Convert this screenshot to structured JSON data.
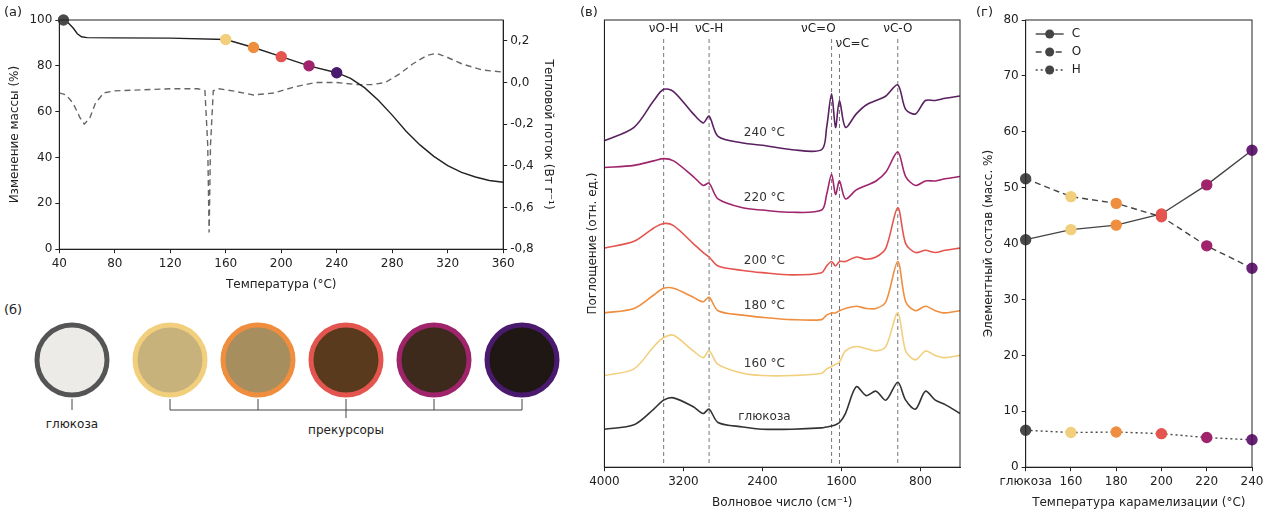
{
  "chart_data": [
    {
      "panel": "(а)",
      "type": "line",
      "x_label": "Температура (°C)",
      "y_label": "Изменение массы (%)",
      "y2_label": "Тепловой поток (Вт г⁻¹)",
      "xlim": [
        40,
        360
      ],
      "xticks": [
        40,
        80,
        120,
        160,
        200,
        240,
        280,
        320,
        360
      ],
      "ylim": [
        0,
        100
      ],
      "yticks": [
        0,
        20,
        40,
        60,
        80,
        100
      ],
      "y2lim": [
        -0.8,
        0.3
      ],
      "y2ticks": [
        {
          "value": 0.2,
          "label": "0,2"
        },
        {
          "value": 0,
          "label": "0,0"
        },
        {
          "value": -0.2,
          "label": "-0,2"
        },
        {
          "value": -0.4,
          "label": "-0,4"
        },
        {
          "value": -0.6,
          "label": "-0,6"
        },
        {
          "value": -0.8,
          "label": "-0,8"
        }
      ],
      "grid": false,
      "series": [
        {
          "type": "line",
          "color": "#222222",
          "line_style": "solid",
          "x": [
            40,
            43,
            46,
            50,
            53,
            56,
            60,
            80,
            120,
            160,
            180,
            200,
            220,
            240,
            250,
            260,
            270,
            280,
            290,
            300,
            310,
            320,
            330,
            340,
            350,
            360
          ],
          "values": [
            100,
            100,
            99,
            96.5,
            94,
            92.7,
            92.3,
            92.2,
            92.1,
            91.5,
            88,
            84,
            80,
            77,
            74.5,
            70.5,
            65,
            58.5,
            51.5,
            45.5,
            40.5,
            36.5,
            33.5,
            31.5,
            30,
            29.2
          ]
        },
        {
          "type": "line",
          "axis": "y2",
          "color": "#666666",
          "line_style": "dashed",
          "x": [
            40,
            45,
            50,
            55,
            58,
            62,
            66,
            72,
            80,
            100,
            120,
            140,
            145,
            147,
            148,
            149,
            151,
            155,
            165,
            180,
            195,
            210,
            225,
            240,
            255,
            265,
            275,
            285,
            295,
            305,
            312,
            320,
            330,
            345,
            360
          ],
          "values": [
            -0.05,
            -0.06,
            -0.1,
            -0.17,
            -0.2,
            -0.17,
            -0.1,
            -0.05,
            -0.04,
            -0.035,
            -0.03,
            -0.03,
            -0.04,
            -0.3,
            -0.72,
            -0.3,
            -0.04,
            -0.03,
            -0.04,
            -0.06,
            -0.05,
            -0.02,
            0,
            0,
            -0.01,
            -0.01,
            0,
            0.04,
            0.09,
            0.13,
            0.14,
            0.12,
            0.09,
            0.06,
            0.05
          ]
        },
        {
          "type": "scatter",
          "marker": "circle",
          "x": [
            43,
            160,
            180,
            200,
            220,
            240
          ],
          "values": [
            100,
            91.5,
            88,
            84,
            80,
            77
          ],
          "colors": [
            "#4a4a4a",
            "#f2cf7c",
            "#ef8e3e",
            "#e4554f",
            "#a0246c",
            "#4a1a6e"
          ]
        }
      ]
    },
    {
      "panel": "(в)",
      "type": "line",
      "x_label": "Волновое число (см⁻¹)",
      "y_label": "Поглощение (отн. ед.)",
      "xlim": [
        4000,
        400
      ],
      "xticks": [
        4000,
        3200,
        2400,
        1600,
        800
      ],
      "ylim": [
        0,
        10
      ],
      "tick_labels": "x",
      "grid": false,
      "annotations": [
        {
          "x": 3400,
          "text": "νO-H"
        },
        {
          "x": 2940,
          "text": "νC-H"
        },
        {
          "x": 1700,
          "text": "νC=O"
        },
        {
          "x": 1620,
          "text": "νC=C"
        },
        {
          "x": 1030,
          "text": "νC-O"
        }
      ],
      "x": [
        4000,
        3700,
        3500,
        3400,
        3300,
        3100,
        3000,
        2940,
        2850,
        2600,
        2400,
        2100,
        1800,
        1750,
        1700,
        1660,
        1620,
        1560,
        1450,
        1350,
        1250,
        1150,
        1030,
        950,
        850,
        750,
        650,
        550,
        400
      ],
      "series": [
        {
          "name": "240 °C",
          "color": "#5a2161",
          "values": [
            7.3,
            7.6,
            8.2,
            8.45,
            8.4,
            7.9,
            7.7,
            7.85,
            7.4,
            7.25,
            7.2,
            7.1,
            7.1,
            7.6,
            8.35,
            7.6,
            8.2,
            7.6,
            7.9,
            8.1,
            8.2,
            8.3,
            8.55,
            8.0,
            7.9,
            8.2,
            8.2,
            8.25,
            8.3
          ]
        },
        {
          "name": "220 °C",
          "color": "#a0246c",
          "values": [
            6.7,
            6.75,
            6.85,
            6.9,
            6.85,
            6.5,
            6.3,
            6.35,
            6.0,
            5.8,
            5.75,
            5.7,
            5.75,
            6.1,
            6.55,
            6.1,
            6.4,
            6.0,
            6.2,
            6.3,
            6.4,
            6.6,
            7.05,
            6.5,
            6.3,
            6.4,
            6.4,
            6.45,
            6.5
          ]
        },
        {
          "name": "200 °C",
          "color": "#e4554f",
          "values": [
            4.9,
            5.05,
            5.35,
            5.45,
            5.4,
            5.0,
            4.8,
            4.7,
            4.5,
            4.4,
            4.35,
            4.3,
            4.35,
            4.5,
            4.6,
            4.5,
            4.6,
            4.6,
            4.7,
            4.65,
            4.7,
            4.9,
            5.8,
            5.0,
            4.8,
            4.85,
            4.8,
            4.85,
            4.9
          ]
        },
        {
          "name": "180 °C",
          "color": "#ef8e3e",
          "values": [
            3.45,
            3.55,
            3.85,
            4.0,
            4.0,
            3.8,
            3.7,
            3.8,
            3.5,
            3.4,
            3.35,
            3.3,
            3.3,
            3.4,
            3.45,
            3.45,
            3.5,
            3.55,
            3.6,
            3.55,
            3.55,
            3.7,
            4.6,
            3.7,
            3.5,
            3.6,
            3.5,
            3.45,
            3.5
          ]
        },
        {
          "name": "160 °C",
          "color": "#f2cf7c",
          "values": [
            2.05,
            2.2,
            2.7,
            2.9,
            2.95,
            2.6,
            2.45,
            2.6,
            2.3,
            2.1,
            2.05,
            2.05,
            2.1,
            2.2,
            2.25,
            2.3,
            2.35,
            2.6,
            2.7,
            2.65,
            2.6,
            2.7,
            3.45,
            2.6,
            2.4,
            2.6,
            2.5,
            2.45,
            2.5
          ]
        },
        {
          "name": "глюкоза",
          "color": "#333333",
          "values": [
            0.85,
            0.95,
            1.3,
            1.5,
            1.55,
            1.35,
            1.2,
            1.3,
            1.0,
            0.9,
            0.85,
            0.85,
            0.88,
            0.9,
            0.92,
            0.95,
            1.0,
            1.2,
            1.8,
            1.6,
            1.7,
            1.5,
            1.9,
            1.5,
            1.3,
            1.7,
            1.5,
            1.4,
            1.2
          ]
        }
      ]
    },
    {
      "panel": "(г)",
      "type": "line",
      "x_label": "Температура карамелизации (°C)",
      "y_label": "Элементный состав (масс. %)",
      "categories": [
        "глюкоза",
        "160",
        "180",
        "200",
        "220",
        "240"
      ],
      "ylim": [
        0,
        80
      ],
      "yticks": [
        0,
        10,
        20,
        30,
        40,
        50,
        60,
        70,
        80
      ],
      "grid": false,
      "legend": "upper left",
      "series": [
        {
          "name": "C",
          "color": "#444444",
          "line_style": "solid",
          "marker": "circle",
          "values": [
            40.7,
            42.5,
            43.3,
            45.3,
            50.5,
            56.7
          ],
          "colors": [
            "#4a4a4a",
            "#f2cf7c",
            "#ef8e3e",
            "#e4554f",
            "#a0246c",
            "#6b1f7a"
          ]
        },
        {
          "name": "O",
          "color": "#444444",
          "line_style": "dashed",
          "marker": "circle",
          "values": [
            51.6,
            48.4,
            47.2,
            44.8,
            39.6,
            35.6
          ],
          "colors": [
            "#4a4a4a",
            "#f2cf7c",
            "#ef8e3e",
            "#e4554f",
            "#a0246c",
            "#6b1f7a"
          ]
        },
        {
          "name": "H",
          "color": "#444444",
          "line_style": "dotted",
          "marker": "circle",
          "values": [
            6.6,
            6.2,
            6.3,
            6.0,
            5.3,
            4.9
          ],
          "colors": [
            "#4a4a4a",
            "#f2cf7c",
            "#ef8e3e",
            "#e4554f",
            "#a0246c",
            "#6b1f7a"
          ]
        }
      ]
    }
  ],
  "photo_panel": {
    "panel": "(б)",
    "group_label": "прекурсоры",
    "items": [
      {
        "label": "глюкоза",
        "ring": "#555555",
        "fill": "#ecebe7"
      },
      {
        "ring": "#f2cf7c",
        "fill": "#c8b27c"
      },
      {
        "ring": "#ef8e3e",
        "fill": "#a68e5e"
      },
      {
        "ring": "#e4554f",
        "fill": "#5a3a1c"
      },
      {
        "ring": "#a0246c",
        "fill": "#3d2a1c"
      },
      {
        "ring": "#4a1a6e",
        "fill": "#1e1714"
      }
    ]
  }
}
